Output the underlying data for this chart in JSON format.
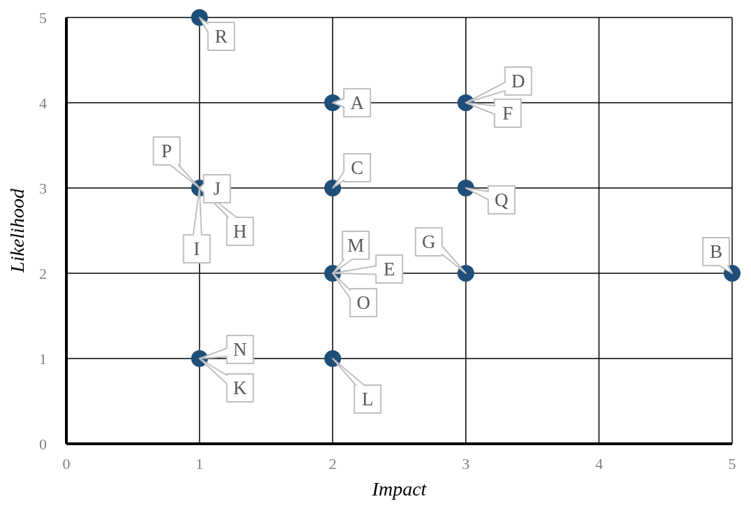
{
  "chart_data": {
    "type": "scatter",
    "xlabel": "Impact",
    "ylabel": "Likelihood",
    "x": [
      2,
      5,
      2,
      3,
      2,
      3,
      1,
      1,
      2,
      3,
      1
    ],
    "values": [
      4,
      2,
      3,
      4,
      2,
      2,
      3,
      1,
      1,
      3,
      5
    ],
    "color": "#1f4e79",
    "marker": "circle",
    "xlim": [
      0,
      5
    ],
    "ylim": [
      0,
      5
    ],
    "xticks": [
      0,
      1,
      2,
      3,
      4,
      5
    ],
    "yticks": [
      0,
      1,
      2,
      3,
      4,
      5
    ],
    "grid": true,
    "annotations": [
      {
        "text": "A",
        "x": 2,
        "y": 4
      },
      {
        "text": "B",
        "x": 5,
        "y": 2
      },
      {
        "text": "C",
        "x": 2,
        "y": 3
      },
      {
        "text": "D",
        "x": 3,
        "y": 4
      },
      {
        "text": "E",
        "x": 2,
        "y": 2
      },
      {
        "text": "F",
        "x": 3,
        "y": 4
      },
      {
        "text": "G",
        "x": 3,
        "y": 2
      },
      {
        "text": "H",
        "x": 1,
        "y": 3
      },
      {
        "text": "I",
        "x": 1,
        "y": 3
      },
      {
        "text": "J",
        "x": 1,
        "y": 3
      },
      {
        "text": "K",
        "x": 1,
        "y": 1
      },
      {
        "text": "L",
        "x": 2,
        "y": 1
      },
      {
        "text": "M",
        "x": 2,
        "y": 2
      },
      {
        "text": "N",
        "x": 1,
        "y": 1
      },
      {
        "text": "O",
        "x": 2,
        "y": 2
      },
      {
        "text": "P",
        "x": 1,
        "y": 3
      },
      {
        "text": "Q",
        "x": 3,
        "y": 3
      },
      {
        "text": "R",
        "x": 1,
        "y": 5
      }
    ]
  }
}
